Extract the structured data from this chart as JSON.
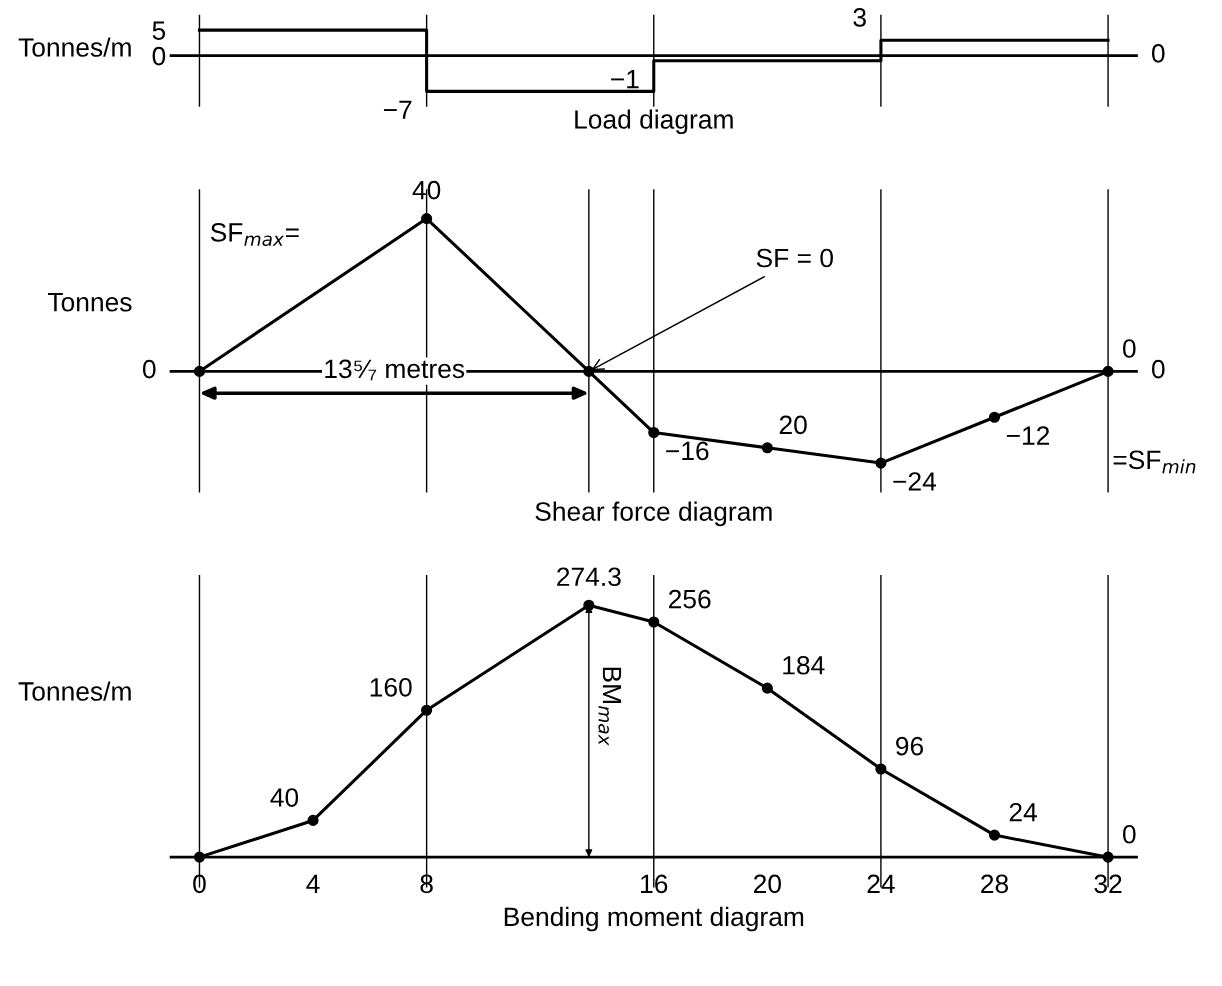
{
  "chart_data": [
    {
      "type": "step",
      "xlabel": "Load diagram",
      "ylabel": "Tonnes/m",
      "x": [
        0,
        8,
        16,
        24,
        32
      ],
      "values": [
        5,
        -7,
        -1,
        3,
        3
      ],
      "value_labels": [
        null,
        "−7",
        "−1",
        "3",
        null
      ],
      "color": "#000000",
      "xlim": [
        -1,
        33
      ],
      "ylim": [
        -10,
        8
      ],
      "yticks": [
        0,
        5
      ],
      "tick_labels": "y",
      "ref_lines": [
        {
          "axis": "x",
          "value": 0
        },
        {
          "axis": "x",
          "value": 8
        },
        {
          "axis": "x",
          "value": 16
        },
        {
          "axis": "x",
          "value": 24
        },
        {
          "axis": "x",
          "value": 32
        }
      ],
      "annotations": [
        "0"
      ]
    },
    {
      "type": "line",
      "xlabel": "Shear force diagram",
      "ylabel": "Tonnes",
      "x": [
        0,
        8,
        13.714,
        16,
        20,
        24,
        28,
        32
      ],
      "values": [
        0,
        40,
        0,
        -16,
        -20,
        -24,
        -12,
        0
      ],
      "value_labels": [
        null,
        "40",
        null,
        "−16",
        null,
        "−24",
        "−12",
        "0"
      ],
      "color": "#000000",
      "marker": "circle",
      "xlim": [
        -1,
        33
      ],
      "tick_labels": false,
      "ref_lines": [
        {
          "axis": "x",
          "value": 0
        },
        {
          "axis": "x",
          "value": 8
        },
        {
          "axis": "x",
          "value": 13.714
        },
        {
          "axis": "x",
          "value": 16
        },
        {
          "axis": "x",
          "value": 24
        },
        {
          "axis": "x",
          "value": 32
        }
      ],
      "annotations": [
        "SF$_{max}$=",
        {
          "text": "SF = 0",
          "x": 13.714,
          "y": 0
        },
        "13⁵⁄₇ metres",
        "=SF$_{min}$",
        "0",
        "0",
        "20"
      ]
    },
    {
      "type": "line",
      "xlabel": "Bending moment diagram",
      "ylabel": "Tonnes/m",
      "x": [
        0,
        4,
        8,
        13.714,
        16,
        20,
        24,
        28,
        32
      ],
      "values": [
        0,
        40,
        160,
        274.3,
        256,
        184,
        96,
        24,
        0
      ],
      "value_labels": [
        null,
        "40",
        "160",
        "274.3",
        "256",
        "184",
        "96",
        "24",
        "0"
      ],
      "color": "#000000",
      "marker": "circle",
      "xlim": [
        -1,
        33
      ],
      "xticks": [
        0,
        4,
        8,
        16,
        20,
        24,
        28,
        32
      ],
      "tick_labels": "x",
      "ref_lines": [
        {
          "axis": "x",
          "value": 0
        },
        {
          "axis": "x",
          "value": 8
        },
        {
          "axis": "x",
          "value": 16
        },
        {
          "axis": "x",
          "value": 24
        },
        {
          "axis": "x",
          "value": 32
        }
      ],
      "annotations": [
        "BM$_{max}$"
      ]
    }
  ]
}
